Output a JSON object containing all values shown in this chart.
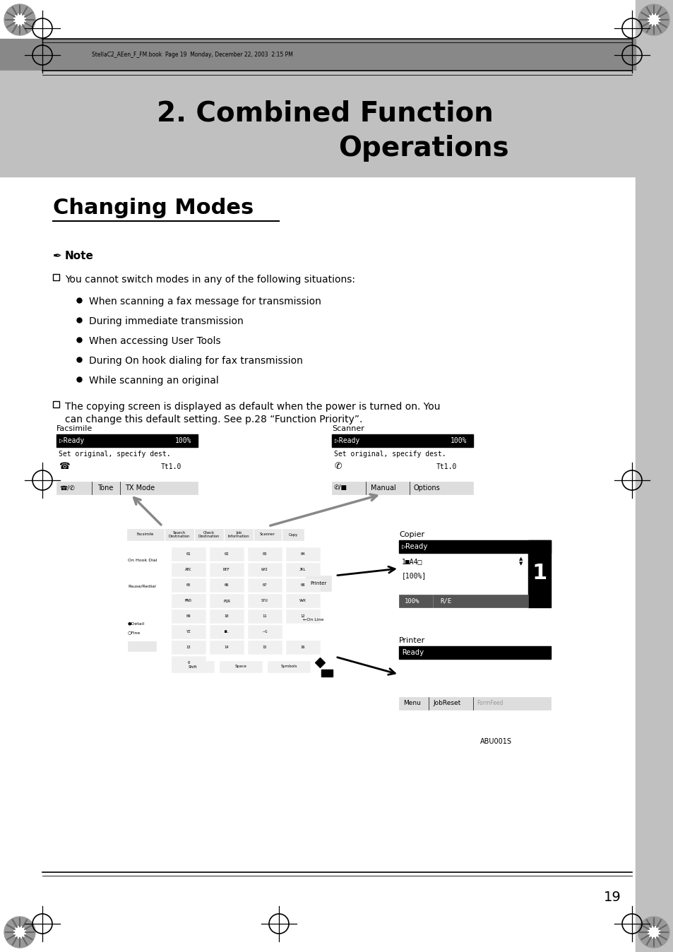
{
  "page_bg": "#ffffff",
  "header_dark_bg": "#888888",
  "header_light_bg": "#c0c0c0",
  "right_sidebar_bg": "#c0c0c0",
  "chapter_title_line1": "2. Combined Function",
  "chapter_title_line2": "Operations",
  "section_title": "Changing Modes",
  "note_label": "Note",
  "bullet_text_0": "You cannot switch modes in any of the following situations:",
  "sub_bullets": [
    "When scanning a fax message for transmission",
    "During immediate transmission",
    "When accessing User Tools",
    "During On hook dialing for fax transmission",
    "While scanning an original"
  ],
  "paragraph2_line1": "The copying screen is displayed as default when the power is turned on. You",
  "paragraph2_line2": "can change this default setting. See p.28 “Function Priority”.",
  "header_meta": "StellaC2_AEen_F_FM.book  Page 19  Monday, December 22, 2003  2:15 PM",
  "page_number": "19",
  "figure_caption": "ABU001S"
}
